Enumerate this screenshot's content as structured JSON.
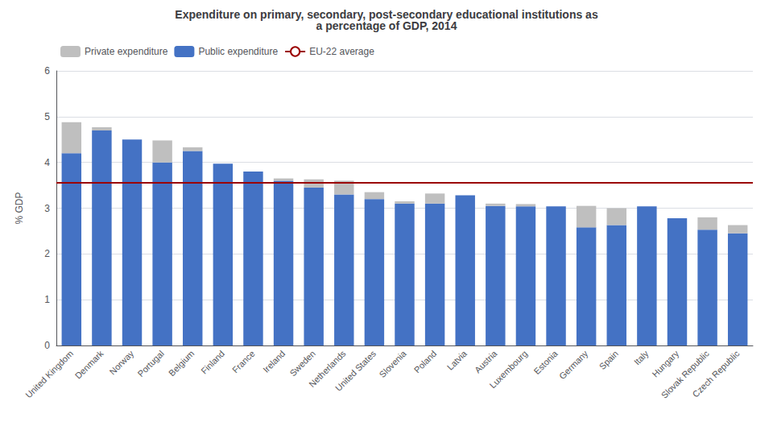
{
  "chart_data": {
    "type": "bar",
    "title": "Expenditure on primary, secondary, post-secondary educational institutions as\na percentage of GDP, 2014",
    "ylabel": "% GDP",
    "ylim": [
      0,
      6
    ],
    "yticks": [
      0,
      1,
      2,
      3,
      4,
      5,
      6
    ],
    "grid": true,
    "stacked": true,
    "legend": "upper left",
    "categories": [
      "United Kingdom",
      "Denmark",
      "Norway",
      "Portugal",
      "Belgium",
      "Finland",
      "France",
      "Ireland",
      "Sweden",
      "Netherlands",
      "United States",
      "Slovenia",
      "Poland",
      "Latvia",
      "Austria",
      "Luxembourg",
      "Estonia",
      "Germany",
      "Spain",
      "Italy",
      "Hungary",
      "Slovak Republic",
      "Czech Republic"
    ],
    "series": [
      {
        "name": "Public expenditure",
        "color": "#4472C4",
        "values": [
          4.2,
          4.7,
          4.5,
          4.0,
          4.25,
          3.97,
          3.8,
          3.6,
          3.45,
          3.3,
          3.2,
          3.1,
          3.1,
          3.28,
          3.05,
          3.04,
          3.04,
          2.58,
          2.63,
          3.04,
          2.78,
          2.53,
          2.45
        ]
      },
      {
        "name": "Private expenditure",
        "color": "#BFBFBF",
        "values": [
          0.68,
          0.07,
          0.0,
          0.48,
          0.08,
          0.0,
          0.0,
          0.05,
          0.18,
          0.3,
          0.15,
          0.05,
          0.22,
          0.0,
          0.05,
          0.05,
          0.0,
          0.47,
          0.37,
          0.0,
          0.0,
          0.27,
          0.18
        ]
      }
    ],
    "hline": {
      "name": "EU-22 average",
      "value": 3.55,
      "color": "#9B0000"
    }
  }
}
